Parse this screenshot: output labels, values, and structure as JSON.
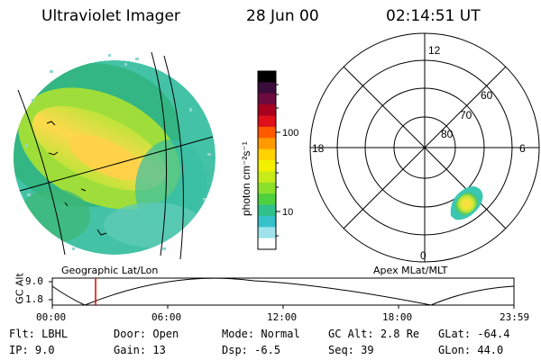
{
  "header": {
    "instrument": "Ultraviolet Imager",
    "date": "28 Jun 00",
    "time": "02:14:51 UT"
  },
  "left_panel": {
    "label": "Geographic Lat/Lon"
  },
  "right_panel": {
    "label": "Apex MLat/MLT",
    "mlt_labels": {
      "top": "12",
      "left": "18",
      "right": "6",
      "bottom": "0"
    },
    "mlat_labels": [
      "60",
      "70",
      "80"
    ]
  },
  "colorbar": {
    "unit_label": "photon cm⁻²s⁻¹",
    "ticks": [
      "100",
      "10"
    ],
    "colors": [
      "#000000",
      "#3a0c3a",
      "#6e0b3e",
      "#a8001e",
      "#e0101a",
      "#ff5a00",
      "#ff9a00",
      "#ffd200",
      "#f3f000",
      "#c8ec1a",
      "#8be02c",
      "#4ed13f",
      "#30c08a",
      "#35c2cb",
      "#9fe2ea",
      "#ffffff"
    ]
  },
  "altitude_plot": {
    "ylabel": "GC Alt",
    "y_ticks": [
      "9.0",
      "1.8"
    ],
    "x_ticks": [
      "00:00",
      "06:00",
      "12:00",
      "18:00",
      "23:59"
    ],
    "current_time_marker_hours": 2.25
  },
  "info": {
    "row1": [
      {
        "key": "Flt:",
        "value": "LBHL"
      },
      {
        "key": "Door:",
        "value": "Open"
      },
      {
        "key": "Mode:",
        "value": "Normal"
      },
      {
        "key": "GC Alt:",
        "value": "2.8 Re"
      },
      {
        "key": "GLat:",
        "value": "-64.4"
      }
    ],
    "row2": [
      {
        "key": "IP:",
        "value": "9.0"
      },
      {
        "key": "Gain:",
        "value": "13"
      },
      {
        "key": "Dsp:",
        "value": "-6.5"
      },
      {
        "key": "Seq:",
        "value": "39"
      },
      {
        "key": "GLon:",
        "value": "44.0"
      }
    ]
  }
}
